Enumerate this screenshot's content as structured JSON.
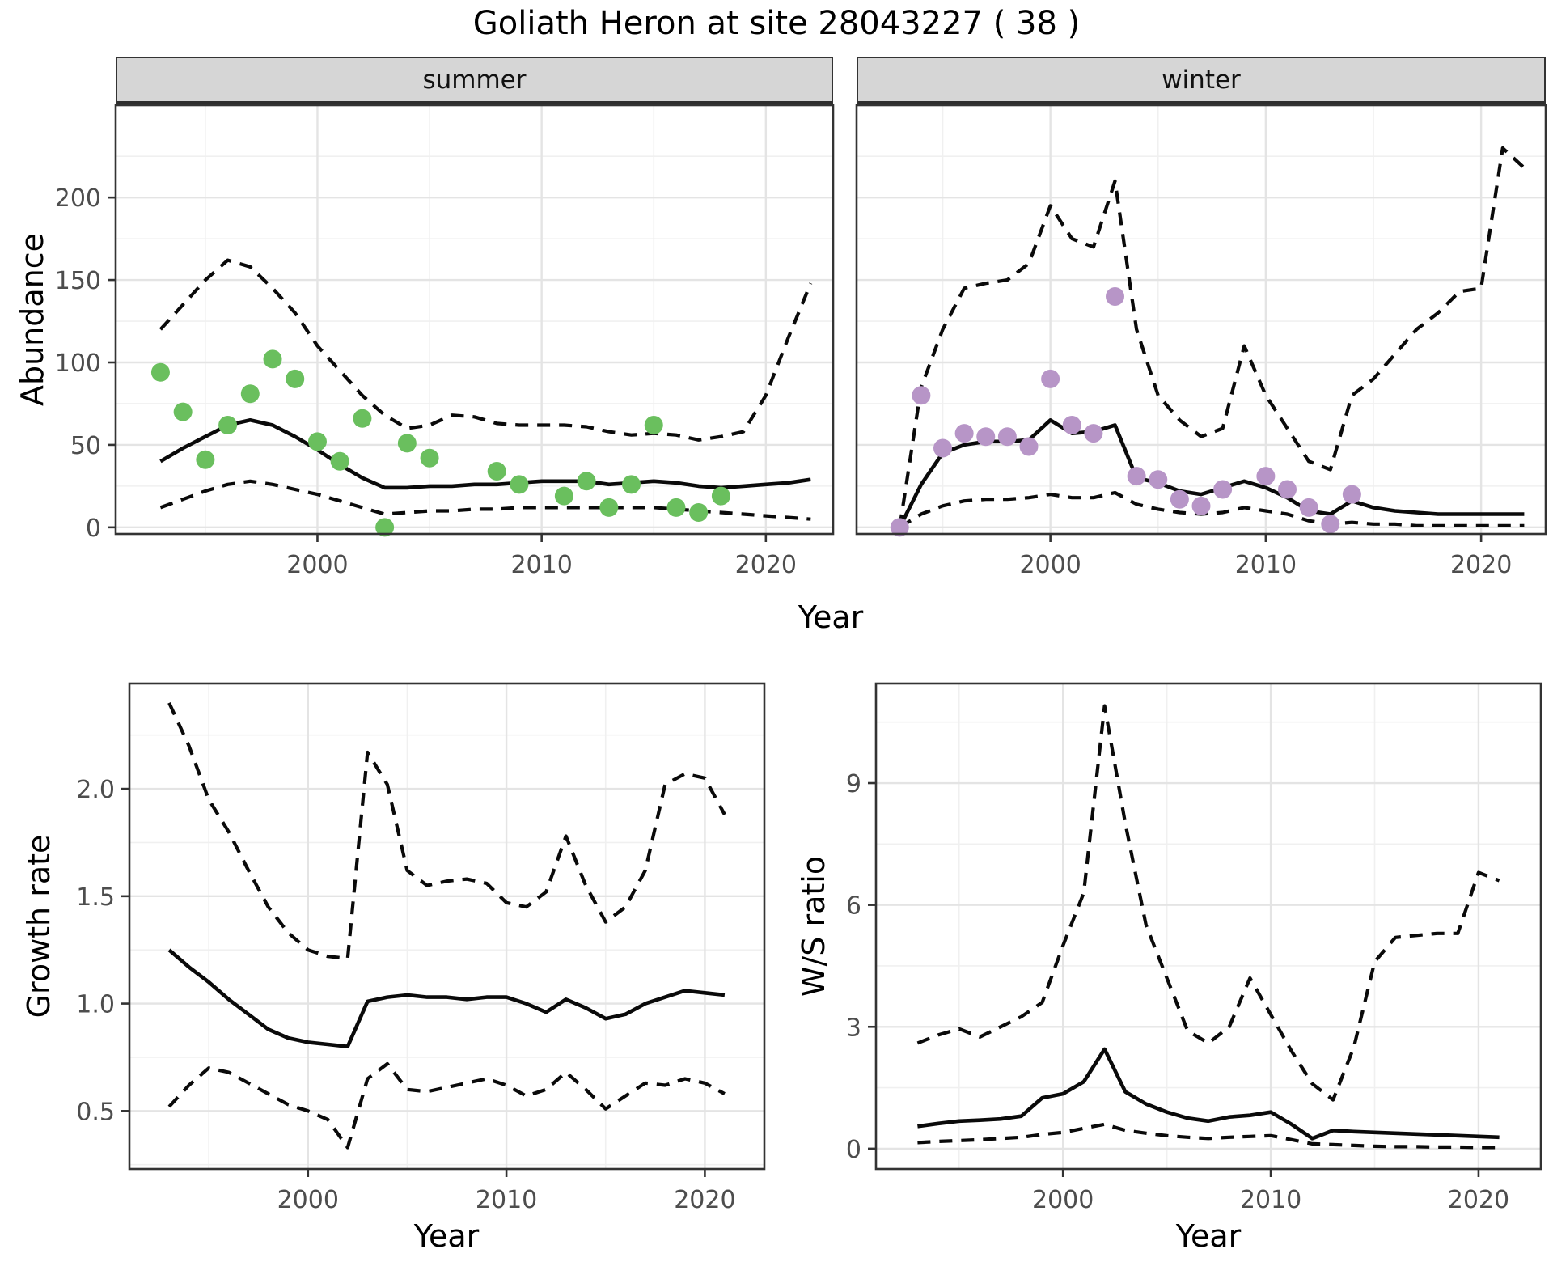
{
  "title": "Goliath Heron at site 28043227 ( 38 )",
  "axes": {
    "x_label": "Year",
    "abundance_label": "Abundance",
    "growth_label": "Growth rate",
    "ws_label": "W/S ratio"
  },
  "colors": {
    "summer_points": "#6abf5e",
    "winter_points": "#b795c7",
    "line": "#0a0a0a",
    "strip_bg": "#d6d6d6",
    "grid": "#e4e4e4",
    "tick_text": "#4d4d4d"
  },
  "chart_data": [
    {
      "id": "summer",
      "type": "line",
      "facet_label": "summer",
      "title": "summer facet",
      "xlabel": "Year",
      "ylabel": "Abundance",
      "x_domain": [
        1991,
        2023
      ],
      "x_ticks": [
        2000,
        2010,
        2020
      ],
      "x_tick_labels": [
        "2000",
        "2010",
        "2020"
      ],
      "x_minor": [
        1995,
        2005,
        2015
      ],
      "y_domain": [
        -4,
        256
      ],
      "y_ticks": [
        0,
        50,
        100,
        150,
        200
      ],
      "y_tick_labels": [
        "0",
        "50",
        "100",
        "150",
        "200"
      ],
      "y_minor": [
        25,
        75,
        125,
        175,
        225
      ],
      "series": [
        {
          "name": "upper-ci",
          "style": "dashed",
          "x_start": 1993,
          "y": [
            120,
            135,
            150,
            162,
            158,
            145,
            130,
            110,
            95,
            80,
            68,
            60,
            62,
            68,
            67,
            63,
            62,
            62,
            62,
            61,
            58,
            56,
            57,
            56,
            53,
            55,
            58,
            80,
            115,
            148
          ]
        },
        {
          "name": "lower-ci",
          "style": "dashed",
          "x_start": 1993,
          "y": [
            12,
            17,
            22,
            26,
            28,
            26,
            23,
            20,
            16,
            12,
            8,
            9,
            10,
            10,
            11,
            11,
            12,
            12,
            12,
            12,
            12,
            12,
            12,
            11,
            10,
            9,
            8,
            7,
            6,
            5
          ]
        },
        {
          "name": "fit-median",
          "style": "solid",
          "x_start": 1993,
          "y": [
            40,
            48,
            55,
            62,
            65,
            62,
            55,
            47,
            38,
            30,
            24,
            24,
            25,
            25,
            26,
            26,
            27,
            28,
            28,
            28,
            26,
            27,
            28,
            27,
            25,
            24,
            25,
            26,
            27,
            29
          ]
        }
      ],
      "points": {
        "name": "observed-counts-summer",
        "color": "#6abf5e",
        "xy": [
          [
            1993,
            94
          ],
          [
            1994,
            70
          ],
          [
            1995,
            41
          ],
          [
            1996,
            62
          ],
          [
            1997,
            81
          ],
          [
            1998,
            102
          ],
          [
            1999,
            90
          ],
          [
            2000,
            52
          ],
          [
            2001,
            40
          ],
          [
            2002,
            66
          ],
          [
            2003,
            0
          ],
          [
            2004,
            51
          ],
          [
            2005,
            42
          ],
          [
            2008,
            34
          ],
          [
            2009,
            26
          ],
          [
            2011,
            19
          ],
          [
            2012,
            28
          ],
          [
            2013,
            12
          ],
          [
            2014,
            26
          ],
          [
            2015,
            62
          ],
          [
            2016,
            12
          ],
          [
            2017,
            9
          ],
          [
            2018,
            19
          ]
        ]
      }
    },
    {
      "id": "winter",
      "type": "line",
      "facet_label": "winter",
      "title": "winter facet",
      "xlabel": "Year",
      "ylabel": "Abundance",
      "x_domain": [
        1991,
        2023
      ],
      "x_ticks": [
        2000,
        2010,
        2020
      ],
      "x_tick_labels": [
        "2000",
        "2010",
        "2020"
      ],
      "x_minor": [
        1995,
        2005,
        2015
      ],
      "y_domain": [
        -4,
        256
      ],
      "y_ticks": [
        0,
        50,
        100,
        150,
        200
      ],
      "y_tick_labels": [
        "0",
        "50",
        "100",
        "150",
        "200"
      ],
      "y_minor": [
        25,
        75,
        125,
        175,
        225
      ],
      "series": [
        {
          "name": "upper-ci",
          "style": "dashed",
          "x_start": 1993,
          "y": [
            0,
            85,
            120,
            145,
            148,
            150,
            160,
            195,
            175,
            170,
            210,
            120,
            80,
            65,
            55,
            60,
            110,
            80,
            60,
            40,
            35,
            80,
            90,
            105,
            120,
            130,
            143,
            145,
            230,
            218
          ]
        },
        {
          "name": "lower-ci",
          "style": "dashed",
          "x_start": 1993,
          "y": [
            0,
            8,
            13,
            16,
            17,
            17,
            18,
            20,
            18,
            18,
            21,
            14,
            11,
            9,
            8,
            9,
            12,
            10,
            8,
            4,
            2,
            3,
            2,
            2,
            1,
            1,
            1,
            1,
            1,
            1
          ]
        },
        {
          "name": "fit-median",
          "style": "solid",
          "x_start": 1993,
          "y": [
            0,
            26,
            45,
            50,
            52,
            52,
            53,
            65,
            57,
            58,
            62,
            30,
            27,
            22,
            20,
            24,
            28,
            24,
            18,
            10,
            8,
            16,
            12,
            10,
            9,
            8,
            8,
            8,
            8,
            8
          ]
        }
      ],
      "points": {
        "name": "observed-counts-winter",
        "color": "#b795c7",
        "xy": [
          [
            1993,
            0
          ],
          [
            1994,
            80
          ],
          [
            1995,
            48
          ],
          [
            1996,
            57
          ],
          [
            1997,
            55
          ],
          [
            1998,
            55
          ],
          [
            1999,
            49
          ],
          [
            2000,
            90
          ],
          [
            2001,
            62
          ],
          [
            2002,
            57
          ],
          [
            2003,
            140
          ],
          [
            2004,
            31
          ],
          [
            2005,
            29
          ],
          [
            2006,
            17
          ],
          [
            2007,
            13
          ],
          [
            2008,
            23
          ],
          [
            2010,
            31
          ],
          [
            2011,
            23
          ],
          [
            2012,
            12
          ],
          [
            2013,
            2
          ],
          [
            2014,
            20
          ]
        ]
      }
    },
    {
      "id": "growth",
      "type": "line",
      "facet_label": "",
      "title": "Growth rate panel",
      "xlabel": "Year",
      "ylabel": "Growth rate",
      "x_domain": [
        1991,
        2023
      ],
      "x_ticks": [
        2000,
        2010,
        2020
      ],
      "x_tick_labels": [
        "2000",
        "2010",
        "2020"
      ],
      "x_minor": [
        1995,
        2005,
        2015
      ],
      "y_domain": [
        0.23,
        2.49
      ],
      "y_ticks": [
        0.5,
        1.0,
        1.5,
        2.0
      ],
      "y_tick_labels": [
        "0.5",
        "1.0",
        "1.5",
        "2.0"
      ],
      "y_minor": [
        0.25,
        0.75,
        1.25,
        1.75,
        2.25
      ],
      "series": [
        {
          "name": "upper-ci",
          "style": "dashed",
          "x_start": 1993,
          "y": [
            2.4,
            2.2,
            1.95,
            1.8,
            1.62,
            1.45,
            1.33,
            1.25,
            1.22,
            1.21,
            2.17,
            2.02,
            1.62,
            1.55,
            1.57,
            1.58,
            1.56,
            1.47,
            1.45,
            1.52,
            1.78,
            1.55,
            1.38,
            1.45,
            1.62,
            2.02,
            2.07,
            2.05,
            1.88
          ]
        },
        {
          "name": "lower-ci",
          "style": "dashed",
          "x_start": 1993,
          "y": [
            0.52,
            0.62,
            0.7,
            0.68,
            0.63,
            0.58,
            0.53,
            0.5,
            0.46,
            0.33,
            0.65,
            0.72,
            0.6,
            0.59,
            0.61,
            0.63,
            0.65,
            0.62,
            0.57,
            0.6,
            0.68,
            0.6,
            0.51,
            0.57,
            0.63,
            0.62,
            0.65,
            0.63,
            0.58
          ]
        },
        {
          "name": "fit-median",
          "style": "solid",
          "x_start": 1993,
          "y": [
            1.25,
            1.17,
            1.1,
            1.02,
            0.95,
            0.88,
            0.84,
            0.82,
            0.81,
            0.8,
            1.01,
            1.03,
            1.04,
            1.03,
            1.03,
            1.02,
            1.03,
            1.03,
            1.0,
            0.96,
            1.02,
            0.98,
            0.93,
            0.95,
            1.0,
            1.03,
            1.06,
            1.05,
            1.04
          ]
        }
      ],
      "points": null
    },
    {
      "id": "ws",
      "type": "line",
      "facet_label": "",
      "title": "W/S ratio panel",
      "xlabel": "Year",
      "ylabel": "W/S ratio",
      "x_domain": [
        1991,
        2023
      ],
      "x_ticks": [
        2000,
        2010,
        2020
      ],
      "x_tick_labels": [
        "2000",
        "2010",
        "2020"
      ],
      "x_minor": [
        1995,
        2005,
        2015
      ],
      "y_domain": [
        -0.5,
        11.45
      ],
      "y_ticks": [
        0,
        3,
        6,
        9
      ],
      "y_tick_labels": [
        "0",
        "3",
        "6",
        "9"
      ],
      "y_minor": [
        1.5,
        4.5,
        7.5,
        10.5
      ],
      "series": [
        {
          "name": "upper-ci",
          "style": "dashed",
          "x_start": 1993,
          "y": [
            2.6,
            2.8,
            2.95,
            2.75,
            3.0,
            3.25,
            3.6,
            5.0,
            6.3,
            10.9,
            8.0,
            5.5,
            4.2,
            2.9,
            2.6,
            3.0,
            4.2,
            3.3,
            2.4,
            1.6,
            1.2,
            2.5,
            4.6,
            5.2,
            5.25,
            5.3,
            5.3,
            6.8,
            6.6
          ]
        },
        {
          "name": "lower-ci",
          "style": "dashed",
          "x_start": 1993,
          "y": [
            0.15,
            0.18,
            0.2,
            0.22,
            0.25,
            0.28,
            0.35,
            0.4,
            0.5,
            0.6,
            0.45,
            0.38,
            0.32,
            0.28,
            0.25,
            0.28,
            0.3,
            0.32,
            0.22,
            0.12,
            0.1,
            0.08,
            0.06,
            0.05,
            0.05,
            0.04,
            0.04,
            0.03,
            0.03
          ]
        },
        {
          "name": "fit-median",
          "style": "solid",
          "x_start": 1993,
          "y": [
            0.55,
            0.62,
            0.68,
            0.7,
            0.73,
            0.8,
            1.25,
            1.35,
            1.65,
            2.45,
            1.4,
            1.1,
            0.9,
            0.75,
            0.68,
            0.78,
            0.82,
            0.9,
            0.6,
            0.25,
            0.45,
            0.42,
            0.4,
            0.38,
            0.36,
            0.34,
            0.32,
            0.3,
            0.28
          ]
        }
      ],
      "points": null
    }
  ]
}
